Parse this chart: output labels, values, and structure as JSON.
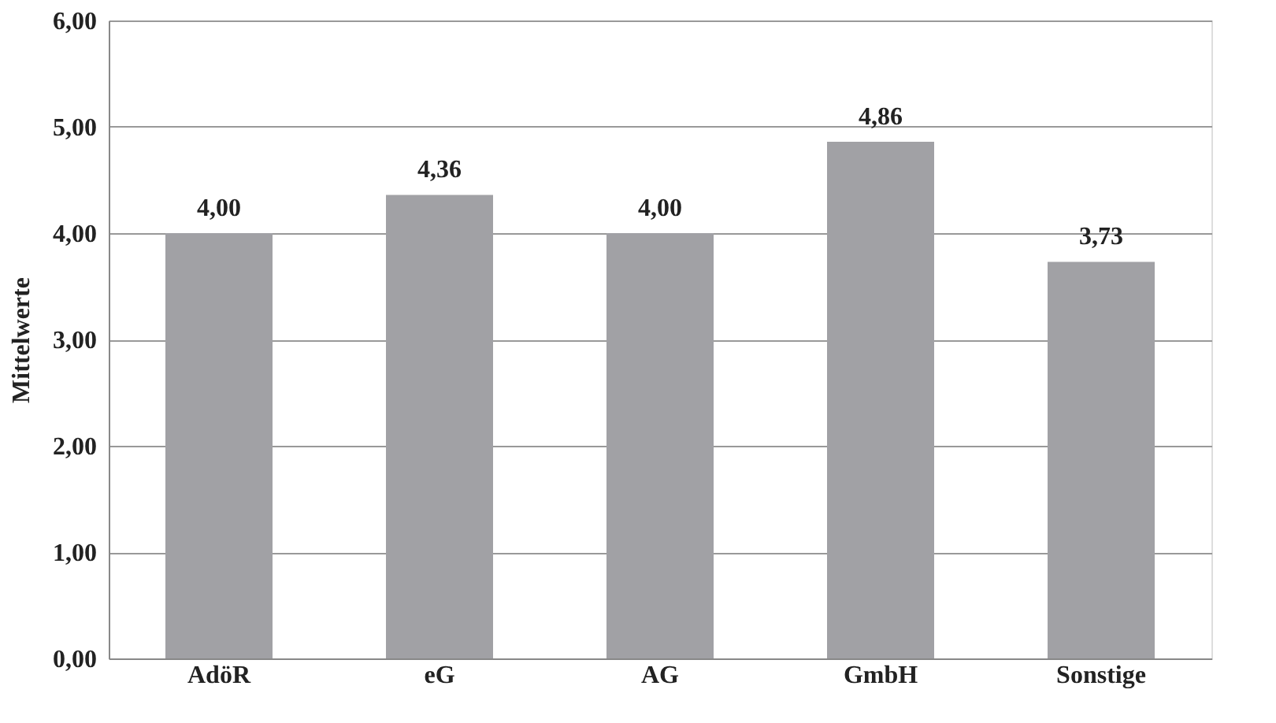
{
  "chart_data": {
    "type": "bar",
    "ylabel": "Mittelwerte",
    "categories": [
      "AdöR",
      "eG",
      "AG",
      "GmbH",
      "Sonstige"
    ],
    "values": [
      4.0,
      4.36,
      4.0,
      4.86,
      3.73
    ],
    "value_labels": [
      "4,00",
      "4,36",
      "4,00",
      "4,86",
      "3,73"
    ],
    "color": "#a1a1a5",
    "ylim": [
      0,
      6
    ],
    "yticks": [
      {
        "value": 0,
        "label": "0,00"
      },
      {
        "value": 1,
        "label": "1,00"
      },
      {
        "value": 2,
        "label": "2,00"
      },
      {
        "value": 3,
        "label": "3,00"
      },
      {
        "value": 4,
        "label": "4,00"
      },
      {
        "value": 5,
        "label": "5,00"
      },
      {
        "value": 6,
        "label": "6,00"
      }
    ],
    "grid": "y"
  }
}
